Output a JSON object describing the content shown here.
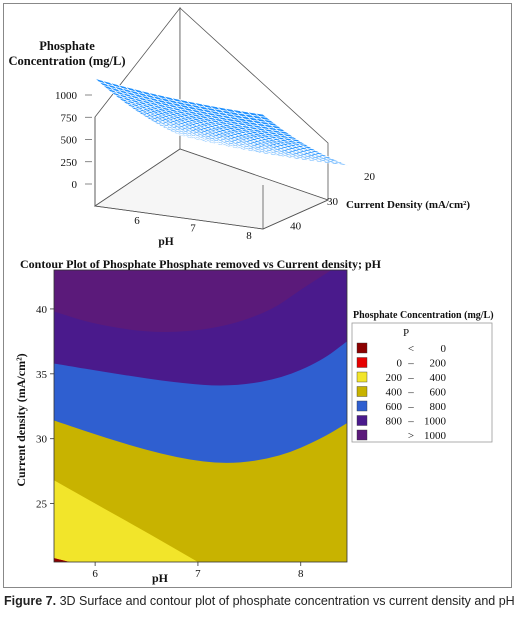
{
  "chart_data": [
    {
      "type": "surface",
      "zlabel": [
        "Phosphate",
        "Concentration (mg/L)"
      ],
      "xlabel": "pH",
      "ylabel": "Current Density (mA/cm²)",
      "x_ticks": [
        "6",
        "7",
        "8"
      ],
      "y_ticks": [
        "20",
        "30",
        "40"
      ],
      "z_ticks": [
        "0",
        "250",
        "500",
        "750",
        "1000"
      ],
      "xlim": [
        5.5,
        8.5
      ],
      "ylim": [
        20,
        43
      ],
      "zlim": [
        0,
        1050
      ],
      "color": "#1e90ff"
    },
    {
      "type": "contour",
      "title": "Contour Plot of Phosphate Phosphate removed  vs Current density; pH",
      "xlabel": "pH",
      "ylabel": "Current density (mA/cm²)",
      "x_ticks": [
        "6",
        "7",
        "8"
      ],
      "y_ticks": [
        "25",
        "30",
        "35",
        "40"
      ],
      "xlim": [
        5.6,
        8.45
      ],
      "ylim": [
        20.5,
        43
      ],
      "legend": {
        "title": "Phosphate Concentration (mg/L)",
        "subtitle": "P",
        "entries": [
          {
            "sym": "<",
            "a": "",
            "b": "0",
            "color": "#8b0000"
          },
          {
            "sym": "–",
            "a": "0",
            "b": "200",
            "color": "#e60000"
          },
          {
            "sym": "–",
            "a": "200",
            "b": "400",
            "color": "#f2e52a"
          },
          {
            "sym": "–",
            "a": "400",
            "b": "600",
            "color": "#c8b300"
          },
          {
            "sym": "–",
            "a": "600",
            "b": "800",
            "color": "#2f5fd0"
          },
          {
            "sym": "–",
            "a": "800",
            "b": "1000",
            "color": "#4a1a8c"
          },
          {
            "sym": ">",
            "a": "",
            "b": "1000",
            "color": "#5b1a7a"
          }
        ]
      },
      "contours": [
        {
          "level": 0,
          "points": [
            [
              5.6,
              20.8
            ],
            [
              5.75,
              20.5
            ]
          ]
        },
        {
          "level": 200,
          "points": [
            [
              5.6,
              26.8
            ],
            [
              6.0,
              25.0
            ],
            [
              6.5,
              22.8
            ],
            [
              7.0,
              20.5
            ]
          ]
        },
        {
          "level": 400,
          "points": [
            [
              5.6,
              31.4
            ],
            [
              6.2,
              29.8
            ],
            [
              6.8,
              28.5
            ],
            [
              7.3,
              28.0
            ],
            [
              7.8,
              28.6
            ],
            [
              8.2,
              30.0
            ],
            [
              8.45,
              31.2
            ]
          ]
        },
        {
          "level": 600,
          "points": [
            [
              5.6,
              35.8
            ],
            [
              6.2,
              35.0
            ],
            [
              6.8,
              34.3
            ],
            [
              7.3,
              34.0
            ],
            [
              7.8,
              34.6
            ],
            [
              8.2,
              36.0
            ],
            [
              8.45,
              37.5
            ]
          ]
        },
        {
          "level": 800,
          "points": [
            [
              5.6,
              39.8
            ],
            [
              6.0,
              38.8
            ],
            [
              6.6,
              38.1
            ],
            [
              7.2,
              38.5
            ],
            [
              7.7,
              39.8
            ],
            [
              8.0,
              41.5
            ],
            [
              8.3,
              43.0
            ]
          ]
        }
      ]
    }
  ],
  "caption": {
    "label": "Figure 7.",
    "text": " 3D Surface and contour plot of phosphate concentration vs current density and pH"
  }
}
